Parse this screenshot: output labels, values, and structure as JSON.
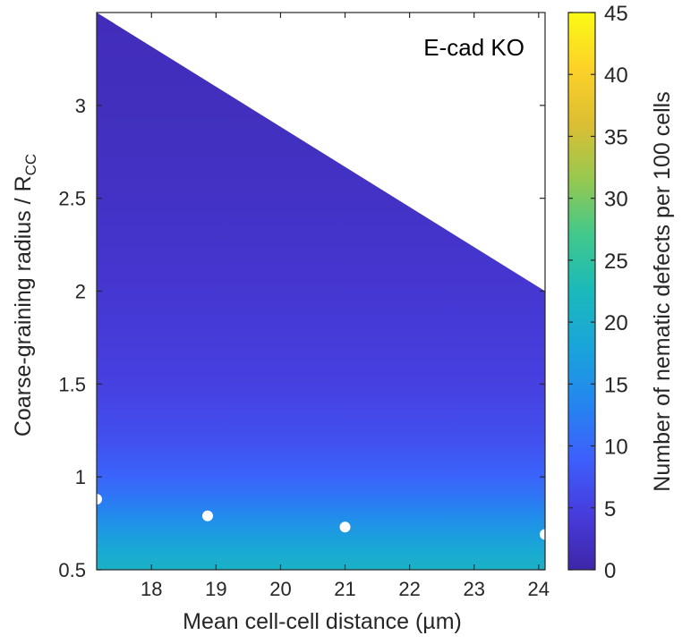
{
  "chart_data": {
    "type": "heatmap",
    "annotation": "E-cad KO",
    "xlabel": "Mean cell-cell distance (µm)",
    "ylabel_main": "Coarse-graining radius / R",
    "ylabel_sub": "CC",
    "colorbar_label": "Number of nematic defects per 100 cells",
    "colormap": "parula",
    "xlim": [
      17.15,
      24.1
    ],
    "ylim": [
      0.5,
      3.5
    ],
    "clim": [
      0,
      45
    ],
    "x_ticks": [
      18,
      19,
      20,
      21,
      22,
      23,
      24
    ],
    "x_tick_labels": [
      "18",
      "19",
      "20",
      "21",
      "22",
      "23",
      "24"
    ],
    "y_ticks": [
      0.5,
      1,
      1.5,
      2,
      2.5,
      3
    ],
    "y_tick_labels": [
      "0.5",
      "1",
      "1.5",
      "2",
      "2.5",
      "3"
    ],
    "colorbar_ticks": [
      0,
      5,
      10,
      15,
      20,
      25,
      30,
      35,
      40,
      45
    ],
    "colorbar_tick_labels": [
      "0",
      "5",
      "10",
      "15",
      "20",
      "25",
      "30",
      "35",
      "40",
      "45"
    ],
    "valid_region_boundary": {
      "x": [
        17.15,
        24.1
      ],
      "y": [
        3.5,
        2.0
      ]
    },
    "color_levels": [
      {
        "y": 0.5,
        "value": 21
      },
      {
        "y": 0.6,
        "value": 19
      },
      {
        "y": 0.7,
        "value": 16.5
      },
      {
        "y": 0.8,
        "value": 14
      },
      {
        "y": 0.9,
        "value": 11.5
      },
      {
        "y": 1.0,
        "value": 9.5
      },
      {
        "y": 1.2,
        "value": 7
      },
      {
        "y": 1.5,
        "value": 5
      },
      {
        "y": 2.0,
        "value": 3.5
      },
      {
        "y": 2.5,
        "value": 2.5
      },
      {
        "y": 3.0,
        "value": 1.8
      },
      {
        "y": 3.5,
        "value": 1.5
      }
    ],
    "points": [
      {
        "x": 17.15,
        "y": 0.88
      },
      {
        "x": 18.87,
        "y": 0.79
      },
      {
        "x": 21.0,
        "y": 0.73
      },
      {
        "x": 24.1,
        "y": 0.69
      }
    ]
  }
}
